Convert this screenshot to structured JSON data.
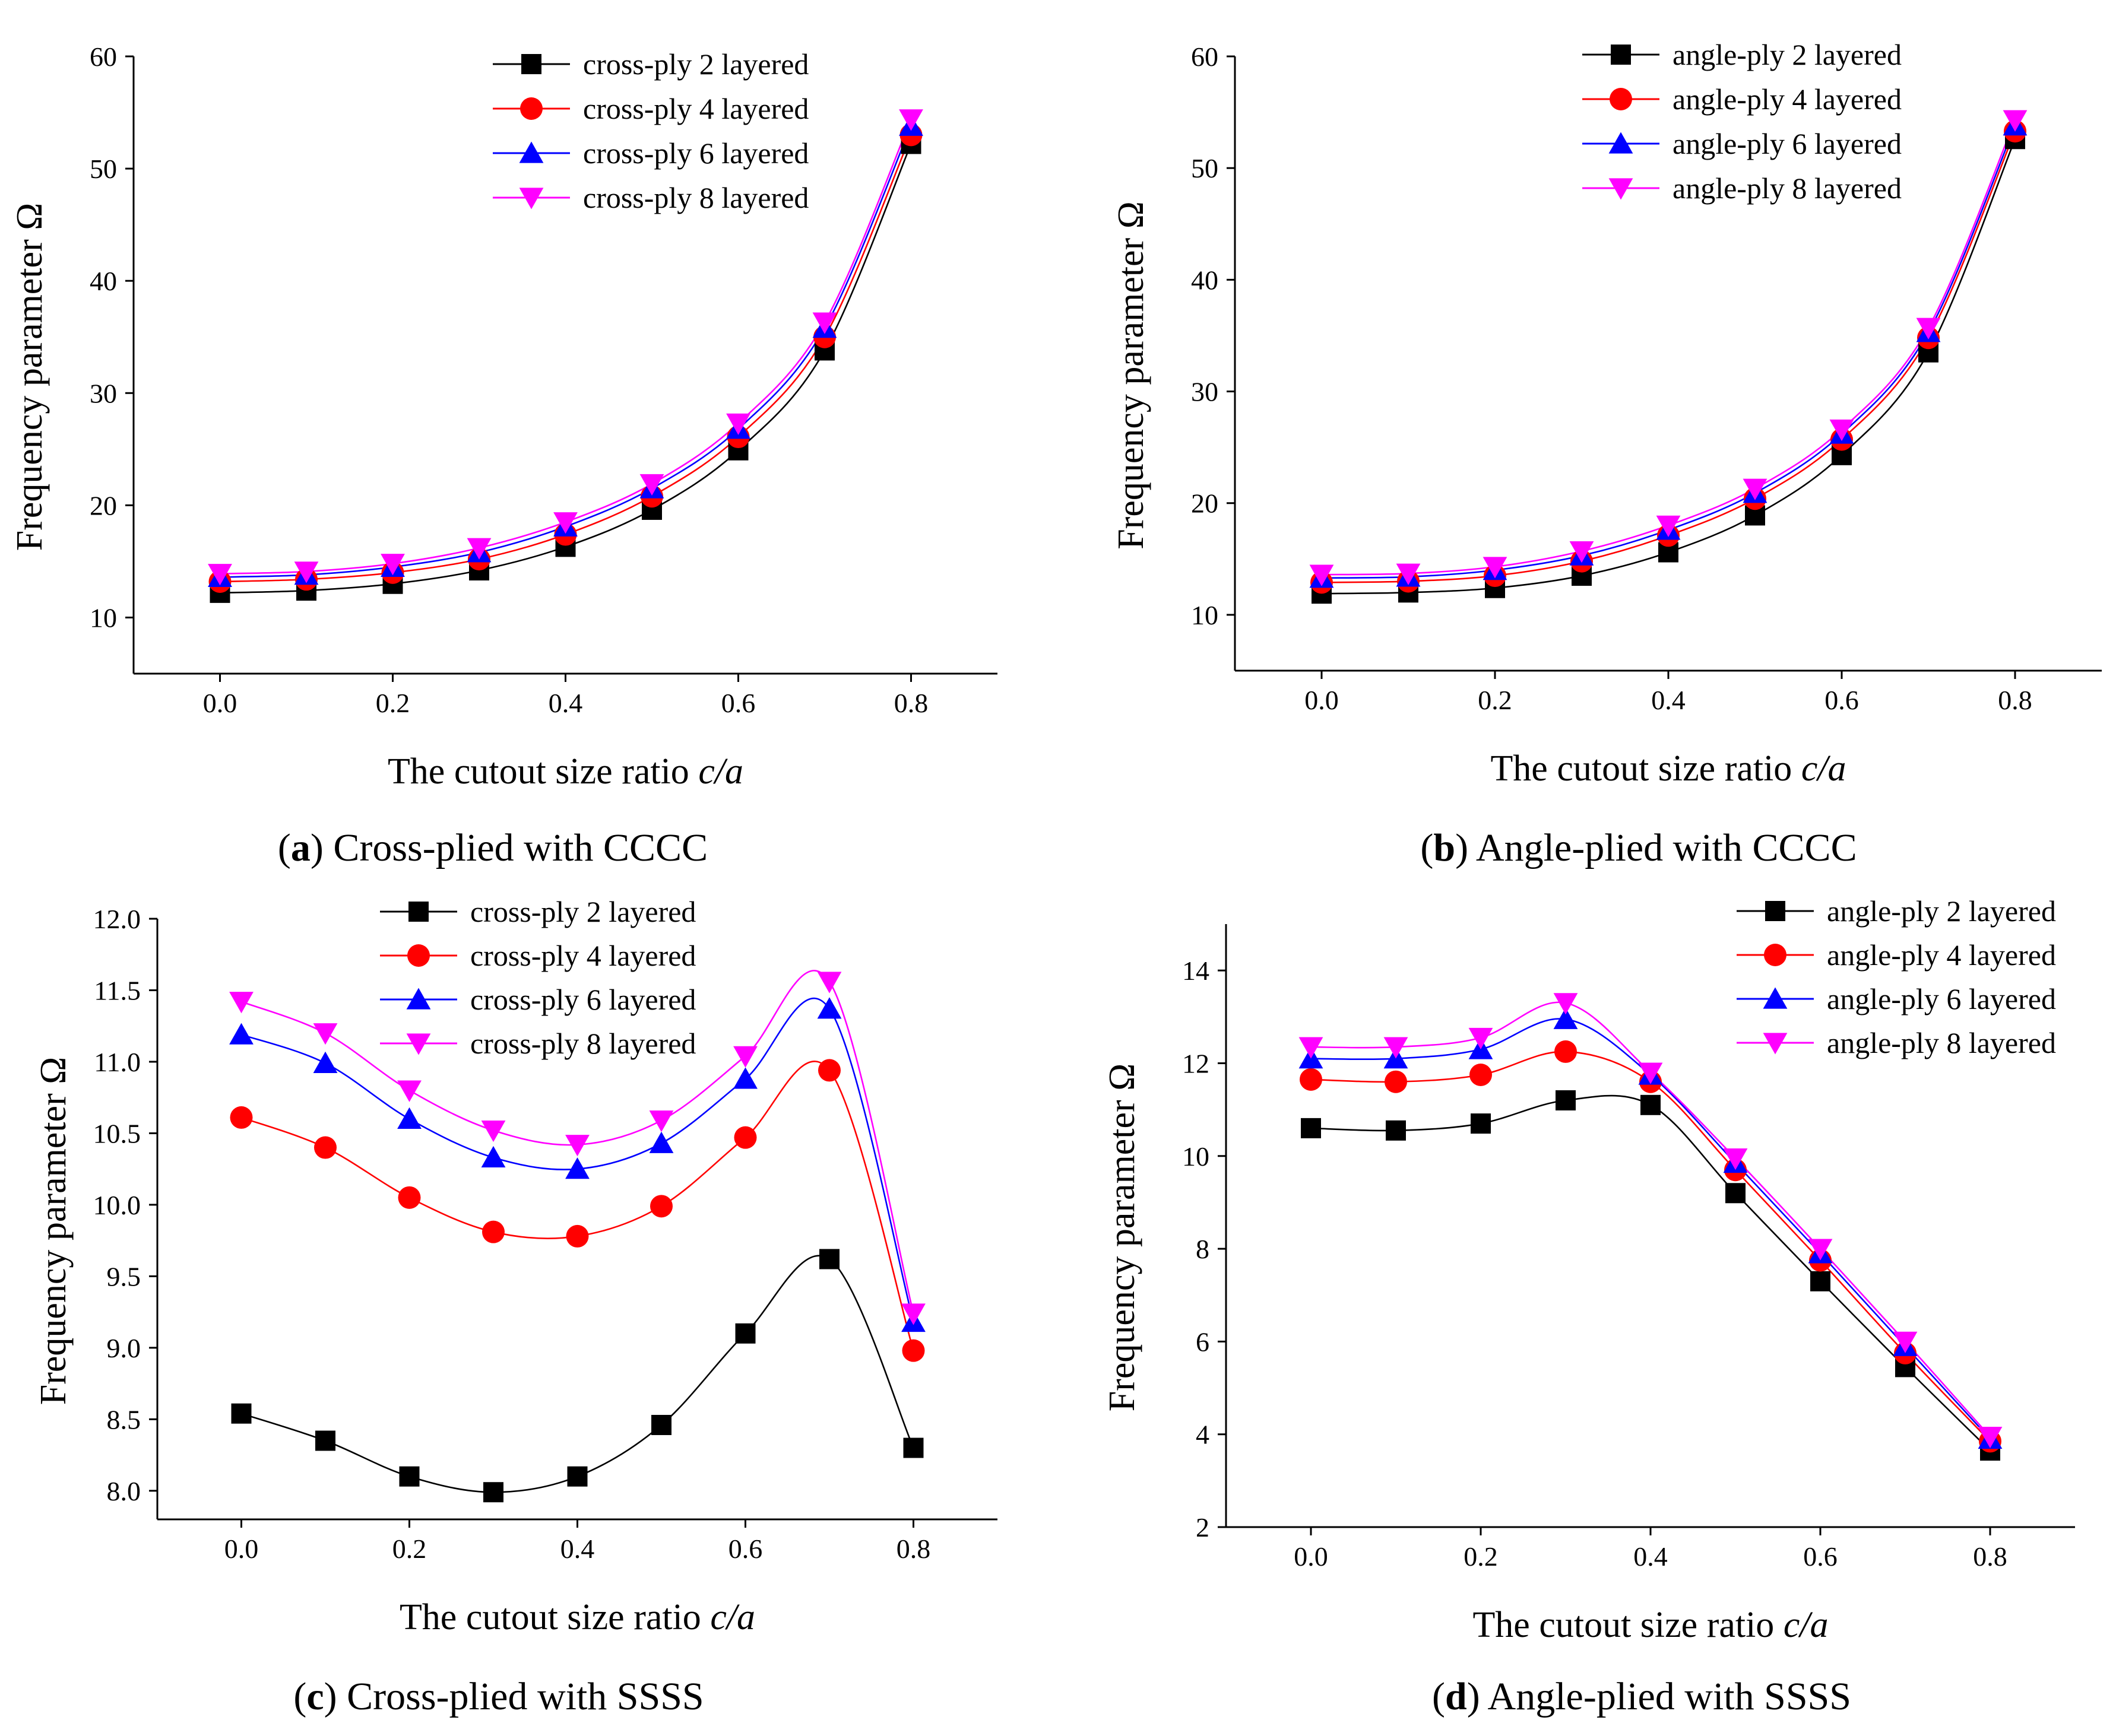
{
  "colors": {
    "black": "#000000",
    "red": "#ff0000",
    "blue": "#0000ff",
    "magenta": "#ff00ff"
  },
  "chart_data": [
    {
      "id": "a",
      "type": "line",
      "caption": {
        "letter": "a",
        "text": " Cross-plied with CCCC",
        "prefix": "(",
        "suffix": ")"
      },
      "xlabel": "The cutout size ratio ",
      "xlabel_italic": "c/a",
      "ylabel": "Frequency parameter Ω",
      "xlim": [
        -0.1,
        0.9
      ],
      "ylim": [
        5,
        60
      ],
      "xticks": [
        0.0,
        0.2,
        0.4,
        0.6,
        0.8
      ],
      "xtick_labels": [
        "0.0",
        "0.2",
        "0.4",
        "0.6",
        "0.8"
      ],
      "yticks": [
        10,
        20,
        30,
        40,
        50,
        60
      ],
      "ytick_labels": [
        "10",
        "20",
        "30",
        "40",
        "50",
        "60"
      ],
      "legend_position": "top-right",
      "x": [
        0.0,
        0.1,
        0.2,
        0.3,
        0.4,
        0.5,
        0.6,
        0.7,
        0.8
      ],
      "series": [
        {
          "name": "cross-ply 2 layered",
          "marker": "square",
          "color": "#000000",
          "values": [
            12.2,
            12.4,
            13.0,
            14.2,
            16.3,
            19.6,
            24.9,
            33.8,
            52.2
          ]
        },
        {
          "name": "cross-ply 4 layered",
          "marker": "circle",
          "color": "#ff0000",
          "values": [
            13.2,
            13.4,
            14.0,
            15.2,
            17.4,
            20.8,
            26.1,
            35.0,
            53.0
          ]
        },
        {
          "name": "cross-ply 6 layered",
          "marker": "triangle-up",
          "color": "#0000ff",
          "values": [
            13.6,
            13.8,
            14.5,
            15.8,
            18.1,
            21.5,
            26.8,
            35.8,
            53.8
          ]
        },
        {
          "name": "cross-ply 8 layered",
          "marker": "triangle-down",
          "color": "#ff00ff",
          "values": [
            13.9,
            14.1,
            14.8,
            16.2,
            18.5,
            21.9,
            27.3,
            36.3,
            54.4
          ]
        }
      ]
    },
    {
      "id": "b",
      "type": "line",
      "caption": {
        "letter": "b",
        "text": " Angle-plied with CCCC",
        "prefix": "(",
        "suffix": ")"
      },
      "xlabel": "The cutout size ratio ",
      "xlabel_italic": "c/a",
      "ylabel": "Frequency parameter Ω",
      "xlim": [
        -0.1,
        0.9
      ],
      "ylim": [
        5,
        60
      ],
      "xticks": [
        0.0,
        0.2,
        0.4,
        0.6,
        0.8
      ],
      "xtick_labels": [
        "0.0",
        "0.2",
        "0.4",
        "0.6",
        "0.8"
      ],
      "yticks": [
        10,
        20,
        30,
        40,
        50,
        60
      ],
      "ytick_labels": [
        "10",
        "20",
        "30",
        "40",
        "50",
        "60"
      ],
      "legend_position": "top-right",
      "x": [
        0.0,
        0.1,
        0.2,
        0.3,
        0.4,
        0.5,
        0.6,
        0.7,
        0.8
      ],
      "series": [
        {
          "name": "angle-ply 2 layered",
          "marker": "square",
          "color": "#000000",
          "values": [
            11.9,
            12.0,
            12.4,
            13.5,
            15.6,
            18.9,
            24.3,
            33.5,
            52.6
          ]
        },
        {
          "name": "angle-ply 4 layered",
          "marker": "circle",
          "color": "#ff0000",
          "values": [
            12.9,
            13.0,
            13.5,
            14.8,
            17.1,
            20.4,
            25.7,
            34.8,
            53.3
          ]
        },
        {
          "name": "angle-ply 6 layered",
          "marker": "triangle-up",
          "color": "#0000ff",
          "values": [
            13.3,
            13.4,
            14.0,
            15.3,
            17.6,
            20.9,
            26.2,
            35.3,
            53.8
          ]
        },
        {
          "name": "angle-ply 8 layered",
          "marker": "triangle-down",
          "color": "#ff00ff",
          "values": [
            13.6,
            13.7,
            14.3,
            15.7,
            18.0,
            21.3,
            26.6,
            35.7,
            54.3
          ]
        }
      ]
    },
    {
      "id": "c",
      "type": "line",
      "caption": {
        "letter": "c",
        "text": " Cross-plied with SSSS",
        "prefix": "(",
        "suffix": ")"
      },
      "xlabel": "The cutout size ratio ",
      "xlabel_italic": "c/a",
      "ylabel": "Frequency parameter Ω",
      "xlim": [
        -0.1,
        0.9
      ],
      "ylim": [
        7.8,
        12.0
      ],
      "xticks": [
        0.0,
        0.2,
        0.4,
        0.6,
        0.8
      ],
      "xtick_labels": [
        "0.0",
        "0.2",
        "0.4",
        "0.6",
        "0.8"
      ],
      "yticks": [
        8.0,
        8.5,
        9.0,
        9.5,
        10.0,
        10.5,
        11.0,
        11.5,
        12.0
      ],
      "ytick_labels": [
        "8.0",
        "8.5",
        "9.0",
        "9.5",
        "10.0",
        "10.5",
        "11.0",
        "11.5",
        "12.0"
      ],
      "legend_position": "top-center",
      "x": [
        0.0,
        0.1,
        0.2,
        0.3,
        0.4,
        0.5,
        0.6,
        0.7,
        0.8
      ],
      "series": [
        {
          "name": "cross-ply 2 layered",
          "marker": "square",
          "color": "#000000",
          "values": [
            8.54,
            8.35,
            8.1,
            7.99,
            8.1,
            8.46,
            9.1,
            9.62,
            8.3
          ]
        },
        {
          "name": "cross-ply 4 layered",
          "marker": "circle",
          "color": "#ff0000",
          "values": [
            10.61,
            10.4,
            10.05,
            9.81,
            9.78,
            9.99,
            10.47,
            10.94,
            8.98
          ]
        },
        {
          "name": "cross-ply 6 layered",
          "marker": "triangle-up",
          "color": "#0000ff",
          "values": [
            11.19,
            10.99,
            10.6,
            10.33,
            10.25,
            10.43,
            10.88,
            11.37,
            9.18
          ]
        },
        {
          "name": "cross-ply 8 layered",
          "marker": "triangle-down",
          "color": "#ff00ff",
          "values": [
            11.42,
            11.2,
            10.8,
            10.52,
            10.42,
            10.59,
            11.04,
            11.56,
            9.24
          ]
        }
      ]
    },
    {
      "id": "d",
      "type": "line",
      "caption": {
        "letter": "d",
        "text": " Angle-plied with SSSS",
        "prefix": "(",
        "suffix": ")"
      },
      "xlabel": "The cutout size ratio ",
      "xlabel_italic": "c/a",
      "ylabel": "Frequency parameter Ω",
      "xlim": [
        -0.1,
        0.9
      ],
      "ylim": [
        2,
        15
      ],
      "xticks": [
        0.0,
        0.2,
        0.4,
        0.6,
        0.8
      ],
      "xtick_labels": [
        "0.0",
        "0.2",
        "0.4",
        "0.6",
        "0.8"
      ],
      "yticks": [
        2,
        4,
        6,
        8,
        10,
        12,
        14
      ],
      "ytick_labels": [
        "2",
        "4",
        "6",
        "8",
        "10",
        "12",
        "14"
      ],
      "legend_position": "top-right",
      "x": [
        0.0,
        0.1,
        0.2,
        0.3,
        0.4,
        0.5,
        0.6,
        0.7,
        0.8
      ],
      "series": [
        {
          "name": "angle-ply 2 layered",
          "marker": "square",
          "color": "#000000",
          "values": [
            10.6,
            10.55,
            10.7,
            11.2,
            11.1,
            9.2,
            7.3,
            5.45,
            3.65
          ]
        },
        {
          "name": "angle-ply 4 layered",
          "marker": "circle",
          "color": "#ff0000",
          "values": [
            11.65,
            11.6,
            11.75,
            12.25,
            11.6,
            9.7,
            7.75,
            5.75,
            3.85
          ]
        },
        {
          "name": "angle-ply 6 layered",
          "marker": "triangle-up",
          "color": "#0000ff",
          "values": [
            12.1,
            12.1,
            12.3,
            12.95,
            11.75,
            9.85,
            7.9,
            5.9,
            3.9
          ]
        },
        {
          "name": "angle-ply 8 layered",
          "marker": "triangle-down",
          "color": "#ff00ff",
          "values": [
            12.35,
            12.35,
            12.55,
            13.3,
            11.8,
            9.95,
            8.0,
            6.0,
            3.95
          ]
        }
      ]
    }
  ]
}
